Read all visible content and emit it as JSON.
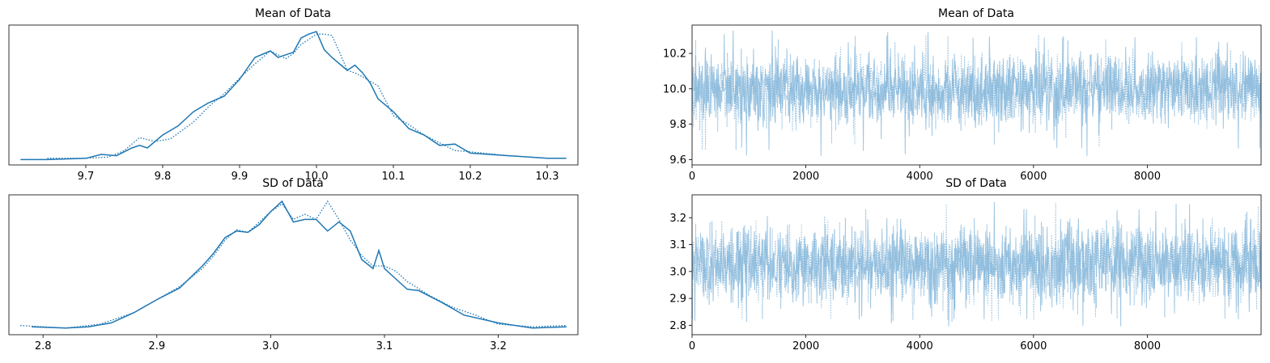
{
  "colors": {
    "line": "#1f77b4",
    "trace": "#7fb3d8",
    "axis": "#000000",
    "background": "#ffffff"
  },
  "chart_data": [
    {
      "id": "kde_mean",
      "type": "line",
      "title": "Mean of Data",
      "xlabel": "",
      "ylabel": "",
      "xlim": [
        9.6,
        10.34
      ],
      "xticks": [
        9.7,
        9.8,
        9.9,
        10.0,
        10.1,
        10.2,
        10.3
      ],
      "xtick_labels": [
        "9.7",
        "9.8",
        "9.9",
        "10.0",
        "10.1",
        "10.2",
        "10.3"
      ],
      "y_ticks_visible": false,
      "series": [
        {
          "style": "solid",
          "x": [
            9.615,
            9.65,
            9.7,
            9.72,
            9.74,
            9.76,
            9.77,
            9.78,
            9.8,
            9.82,
            9.84,
            9.86,
            9.88,
            9.9,
            9.92,
            9.94,
            9.95,
            9.96,
            9.97,
            9.98,
            9.99,
            10.0,
            10.01,
            10.02,
            10.03,
            10.04,
            10.05,
            10.06,
            10.07,
            10.08,
            10.1,
            10.12,
            10.14,
            10.16,
            10.18,
            10.2,
            10.25,
            10.3,
            10.325
          ],
          "y": [
            0.01,
            0.01,
            0.02,
            0.05,
            0.04,
            0.1,
            0.12,
            0.1,
            0.2,
            0.27,
            0.38,
            0.45,
            0.5,
            0.63,
            0.8,
            0.85,
            0.8,
            0.82,
            0.84,
            0.95,
            0.98,
            1.0,
            0.86,
            0.8,
            0.75,
            0.7,
            0.74,
            0.68,
            0.6,
            0.48,
            0.38,
            0.25,
            0.2,
            0.12,
            0.13,
            0.06,
            0.04,
            0.02,
            0.02
          ]
        },
        {
          "style": "dotted",
          "x": [
            9.65,
            9.7,
            9.73,
            9.75,
            9.77,
            9.79,
            9.81,
            9.84,
            9.86,
            9.88,
            9.9,
            9.92,
            9.94,
            9.95,
            9.96,
            9.97,
            9.98,
            9.99,
            10.0,
            10.01,
            10.02,
            10.03,
            10.04,
            10.05,
            10.06,
            10.08,
            10.1,
            10.12,
            10.14,
            10.16,
            10.18,
            10.2,
            10.25,
            10.3
          ],
          "y": [
            0.02,
            0.02,
            0.03,
            0.08,
            0.18,
            0.15,
            0.17,
            0.3,
            0.42,
            0.52,
            0.64,
            0.75,
            0.85,
            0.82,
            0.79,
            0.83,
            0.9,
            0.94,
            0.98,
            0.98,
            0.97,
            0.84,
            0.7,
            0.68,
            0.65,
            0.58,
            0.35,
            0.28,
            0.2,
            0.14,
            0.08,
            0.07,
            0.04,
            0.02
          ]
        }
      ]
    },
    {
      "id": "trace_mean",
      "type": "line",
      "title": "Mean of Data",
      "xlabel": "",
      "ylabel": "",
      "xlim": [
        0,
        9999
      ],
      "ylim": [
        9.57,
        10.36
      ],
      "xticks": [
        0,
        2000,
        4000,
        6000,
        8000
      ],
      "xtick_labels": [
        "0",
        "2000",
        "4000",
        "6000",
        "8000"
      ],
      "yticks": [
        9.6,
        9.8,
        10.0,
        10.2
      ],
      "ytick_labels": [
        "9.6",
        "9.8",
        "10.0",
        "10.2"
      ],
      "n_draws": 10000,
      "series": [
        {
          "style": "solid",
          "mean": 9.995,
          "sd": 0.095,
          "min": 9.62,
          "max": 10.33
        },
        {
          "style": "dotted",
          "mean": 9.995,
          "sd": 0.095,
          "min": 9.65,
          "max": 10.31
        }
      ]
    },
    {
      "id": "kde_sd",
      "type": "line",
      "title": "SD of Data",
      "xlabel": "",
      "ylabel": "",
      "xlim": [
        2.77,
        3.27
      ],
      "xticks": [
        2.8,
        2.9,
        3.0,
        3.1,
        3.2
      ],
      "xtick_labels": [
        "2.8",
        "2.9",
        "3.0",
        "3.1",
        "3.2"
      ],
      "y_ticks_visible": false,
      "series": [
        {
          "style": "solid",
          "x": [
            2.79,
            2.82,
            2.84,
            2.86,
            2.88,
            2.9,
            2.92,
            2.94,
            2.95,
            2.96,
            2.97,
            2.98,
            2.99,
            3.0,
            3.01,
            3.02,
            3.03,
            3.04,
            3.05,
            3.06,
            3.07,
            3.08,
            3.09,
            3.095,
            3.1,
            3.11,
            3.12,
            3.13,
            3.15,
            3.17,
            3.2,
            3.23,
            3.26
          ],
          "y": [
            0.03,
            0.02,
            0.03,
            0.06,
            0.14,
            0.24,
            0.33,
            0.5,
            0.6,
            0.72,
            0.77,
            0.76,
            0.82,
            0.92,
            1.0,
            0.84,
            0.86,
            0.86,
            0.77,
            0.84,
            0.77,
            0.55,
            0.48,
            0.62,
            0.48,
            0.4,
            0.32,
            0.31,
            0.22,
            0.12,
            0.06,
            0.02,
            0.03
          ]
        },
        {
          "style": "dotted",
          "x": [
            2.78,
            2.82,
            2.85,
            2.88,
            2.9,
            2.92,
            2.94,
            2.95,
            2.96,
            2.97,
            2.98,
            2.99,
            3.0,
            3.01,
            3.02,
            3.03,
            3.04,
            3.05,
            3.06,
            3.07,
            3.08,
            3.09,
            3.1,
            3.11,
            3.12,
            3.14,
            3.16,
            3.18,
            3.2,
            3.23,
            3.26
          ],
          "y": [
            0.04,
            0.02,
            0.05,
            0.14,
            0.24,
            0.34,
            0.48,
            0.58,
            0.7,
            0.78,
            0.76,
            0.84,
            0.92,
            0.98,
            0.86,
            0.9,
            0.86,
            1.0,
            0.86,
            0.7,
            0.58,
            0.5,
            0.5,
            0.46,
            0.38,
            0.27,
            0.18,
            0.12,
            0.05,
            0.03,
            0.04
          ]
        }
      ]
    },
    {
      "id": "trace_sd",
      "type": "line",
      "title": "SD of Data",
      "xlabel": "",
      "ylabel": "",
      "xlim": [
        0,
        9999
      ],
      "ylim": [
        2.765,
        3.285
      ],
      "xticks": [
        0,
        2000,
        4000,
        6000,
        8000
      ],
      "xtick_labels": [
        "0",
        "2000",
        "4000",
        "6000",
        "8000"
      ],
      "yticks": [
        2.8,
        2.9,
        3.0,
        3.1,
        3.2
      ],
      "ytick_labels": [
        "2.8",
        "2.9",
        "3.0",
        "3.1",
        "3.2"
      ],
      "n_draws": 10000,
      "series": [
        {
          "style": "solid",
          "mean": 3.025,
          "sd": 0.07,
          "min": 2.79,
          "max": 3.26
        },
        {
          "style": "dotted",
          "mean": 3.025,
          "sd": 0.07,
          "min": 2.8,
          "max": 3.26
        }
      ]
    }
  ]
}
